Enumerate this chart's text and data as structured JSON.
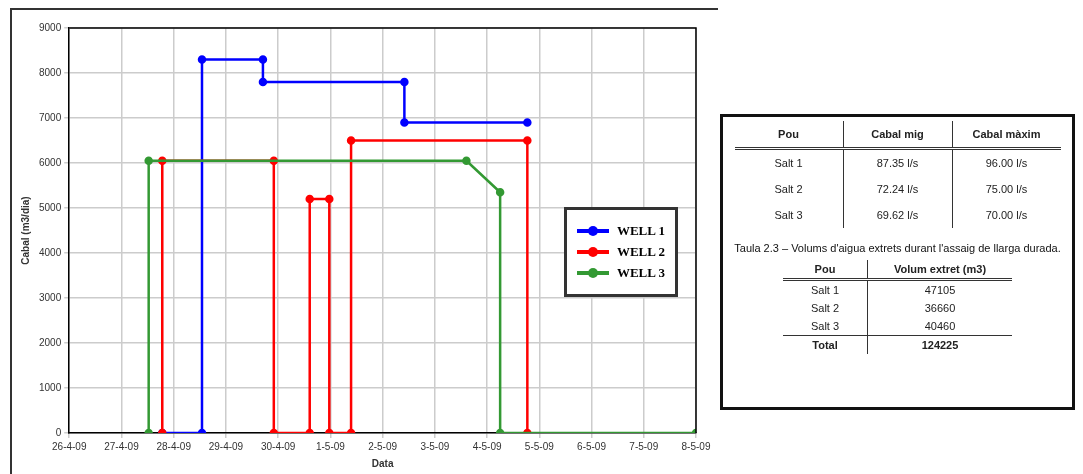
{
  "chart_data": [
    {
      "type": "line",
      "xlabel": "Data",
      "ylabel": "Cabal (m3/dia)",
      "xlim": [
        "--04-26",
        "--05-08"
      ],
      "ylim": [
        0,
        9000
      ],
      "xticks": [
        {
          "value": "--04-26",
          "label": "26-4-09"
        },
        {
          "value": "--04-27",
          "label": "27-4-09"
        },
        {
          "value": "--04-28",
          "label": "28-4-09"
        },
        {
          "value": "--04-29",
          "label": "29-4-09"
        },
        {
          "value": "--04-30",
          "label": "30-4-09"
        },
        {
          "value": "--05-01",
          "label": "1-5-09"
        },
        {
          "value": "--05-02",
          "label": "2-5-09"
        },
        {
          "value": "--05-03",
          "label": "3-5-09"
        },
        {
          "value": "--05-04",
          "label": "4-5-09"
        },
        {
          "value": "--05-05",
          "label": "5-5-09"
        },
        {
          "value": "--05-06",
          "label": "6-5-09"
        },
        {
          "value": "--05-07",
          "label": "7-5-09"
        },
        {
          "value": "--05-08",
          "label": "8-5-09"
        }
      ],
      "yticks": [
        0,
        1000,
        2000,
        3000,
        4000,
        5000,
        6000,
        7000,
        8000,
        9000
      ],
      "grid": true,
      "legend": "right",
      "marker": "circle",
      "line_style": "solid",
      "series": [
        {
          "name": "WELL 3",
          "color": "#339933",
          "x": [
            "--04-27T12:30",
            "--04-27T12:30",
            "--05-03T14:30",
            "--05-04T06:00",
            "--05-04T06:00",
            "--05-08T00:00"
          ],
          "values": [
            0,
            6050,
            6050,
            5350,
            0,
            0
          ]
        },
        {
          "name": "WELL 2",
          "color": "#ff0000",
          "x": [
            "--04-27T18:45",
            "--04-27T18:45",
            "--04-29T22:00",
            "--04-29T22:00",
            "--04-30T14:30",
            "--04-30T14:30",
            "--04-30T23:30",
            "--04-30T23:30",
            "--05-01T09:30",
            "--05-01T09:30",
            "--05-04T18:30",
            "--05-04T18:30"
          ],
          "values": [
            0,
            6050,
            6050,
            0,
            0,
            5200,
            5200,
            0,
            0,
            6500,
            6500,
            0
          ]
        },
        {
          "name": "WELL 1",
          "color": "#0000ff",
          "x": [
            "--04-27T18:45",
            "--04-28T13:00",
            "--04-28T13:00",
            "--04-29T17:00",
            "--04-29T17:00",
            "--05-02T10:00",
            "--05-02T10:00",
            "--05-04T18:30"
          ],
          "values": [
            0,
            0,
            8300,
            8300,
            7800,
            7800,
            6900,
            6900
          ]
        }
      ]
    },
    {
      "type": "other",
      "annotations": [
        "Pou",
        "Cabal mig",
        "Cabal màxim",
        "Salt 1",
        "87.35 l/s",
        "96.00 l/s",
        "Salt 2",
        "72.24 l/s",
        "75.00 l/s",
        "Salt 3",
        "69.62 l/s",
        "70.00 l/s"
      ]
    },
    {
      "type": "other",
      "title": "Taula 2.3 – Volums d'aigua extrets durant l'assaig de llarga durada.",
      "annotations": [
        "Pou",
        "Volum extret (m3)",
        "Salt 1",
        "47105",
        "Salt 2",
        "36660",
        "Salt 3",
        "40460",
        "Total",
        "124225"
      ]
    }
  ]
}
